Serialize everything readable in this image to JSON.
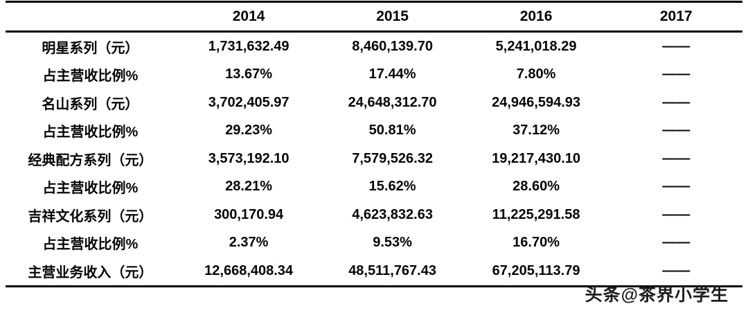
{
  "table": {
    "header": [
      "",
      "2014",
      "2015",
      "2016",
      "2017"
    ],
    "rows": [
      {
        "label": "明星系列（元）",
        "values": [
          "1,731,632.49",
          "8,460,139.70",
          "5,241,018.29",
          "——"
        ]
      },
      {
        "label": "占主营收比例%",
        "values": [
          "13.67%",
          "17.44%",
          "7.80%",
          "——"
        ]
      },
      {
        "label": "名山系列（元）",
        "values": [
          "3,702,405.97",
          "24,648,312.70",
          "24,946,594.93",
          "——"
        ]
      },
      {
        "label": "占主营收比例%",
        "values": [
          "29.23%",
          "50.81%",
          "37.12%",
          "——"
        ]
      },
      {
        "label": "经典配方系列（元）",
        "values": [
          "3,573,192.10",
          "7,579,526.32",
          "19,217,430.10",
          "——"
        ]
      },
      {
        "label": "占主营收比例%",
        "values": [
          "28.21%",
          "15.62%",
          "28.60%",
          "——"
        ]
      },
      {
        "label": "吉祥文化系列（元）",
        "values": [
          "300,170.94",
          "4,623,832.63",
          "11,225,291.58",
          "——"
        ]
      },
      {
        "label": "占主营收比例%",
        "values": [
          "2.37%",
          "9.53%",
          "16.70%",
          "——"
        ]
      },
      {
        "label": "主营业务收入（元）",
        "values": [
          "12,668,408.34",
          "48,511,767.43",
          "67,205,113.79",
          "——"
        ]
      }
    ]
  },
  "watermark": {
    "text": "头条@茶界小学生"
  }
}
